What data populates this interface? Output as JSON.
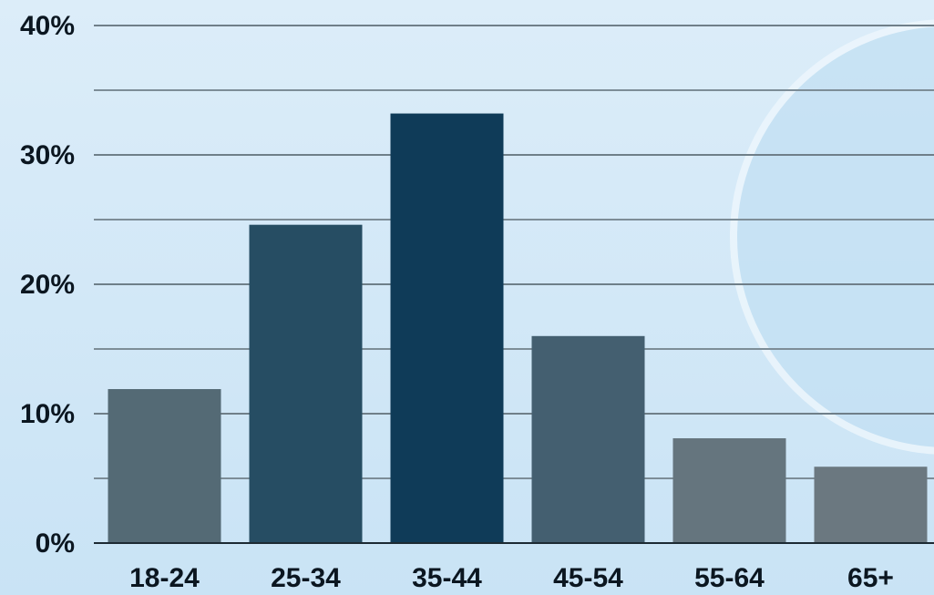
{
  "chart_data": {
    "type": "bar",
    "categories": [
      "18-24",
      "25-34",
      "35-44",
      "45-54",
      "55-64",
      "65+"
    ],
    "values": [
      11.9,
      24.6,
      33.2,
      16.0,
      8.1,
      5.9
    ],
    "colors": [
      "#546a75",
      "#264d63",
      "#0f3b58",
      "#445f70",
      "#65757e",
      "#6b7880"
    ],
    "ylim": [
      0,
      40
    ],
    "yticks": [
      {
        "value": 0,
        "label": "0%"
      },
      {
        "value": 10,
        "label": "10%"
      },
      {
        "value": 20,
        "label": "20%"
      },
      {
        "value": 30,
        "label": "30%"
      },
      {
        "value": 40,
        "label": "40%"
      }
    ],
    "minor_yticks": [
      5,
      15,
      25,
      35
    ],
    "grid": true
  }
}
